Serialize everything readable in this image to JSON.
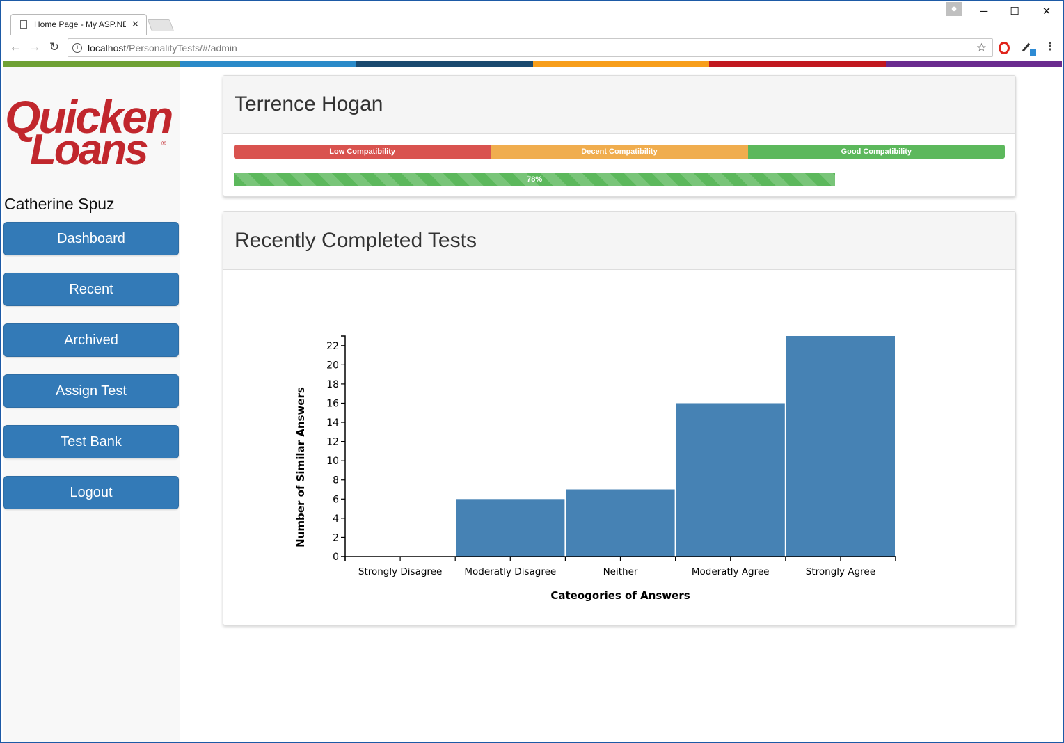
{
  "browser": {
    "tab_title": "Home Page - My ASP.NE",
    "url_host": "localhost",
    "url_path": "/PersonalityTests/#/admin",
    "window_controls": {
      "minimize": "─",
      "maximize": "☐",
      "close": "✕"
    }
  },
  "colors": {
    "stripe": [
      "#6fa134",
      "#2a8ac9",
      "#1a4a6f",
      "#f79e1b",
      "#c1181f",
      "#6a2b8f"
    ],
    "brand_red": "#c1272d",
    "button_blue": "#337ab7",
    "bar_blue": "#4682b4",
    "low": "#d9534f",
    "decent": "#f0ad4e",
    "good": "#5cb85c"
  },
  "sidebar": {
    "logo_line1": "Quicken",
    "logo_line2": "Loans",
    "logo_reg": "®",
    "user_name": "Catherine Spuz",
    "items": [
      {
        "label": "Dashboard"
      },
      {
        "label": "Recent"
      },
      {
        "label": "Archived"
      },
      {
        "label": "Assign Test"
      },
      {
        "label": "Test Bank"
      },
      {
        "label": "Logout"
      }
    ]
  },
  "profile_panel": {
    "title": "Terrence Hogan",
    "scale": [
      "Low Compatibility",
      "Decent Compatibility",
      "Good Compatibility"
    ],
    "compatibility_percent": 78,
    "compatibility_label": "78%"
  },
  "recent_panel": {
    "title": "Recently Completed Tests"
  },
  "chart_data": {
    "type": "bar",
    "title": "",
    "xlabel": "Cateogories of Answers",
    "ylabel": "Number of Similar Answers",
    "categories": [
      "Strongly Disagree",
      "Moderatly Disagree",
      "Neither",
      "Moderatly Agree",
      "Strongly Agree"
    ],
    "values": [
      0,
      6,
      7,
      16,
      23
    ],
    "ylim": [
      0,
      23
    ],
    "yticks": [
      0,
      2,
      4,
      6,
      8,
      10,
      12,
      14,
      16,
      18,
      20,
      22
    ],
    "grid": false,
    "color": "#4682b4"
  }
}
